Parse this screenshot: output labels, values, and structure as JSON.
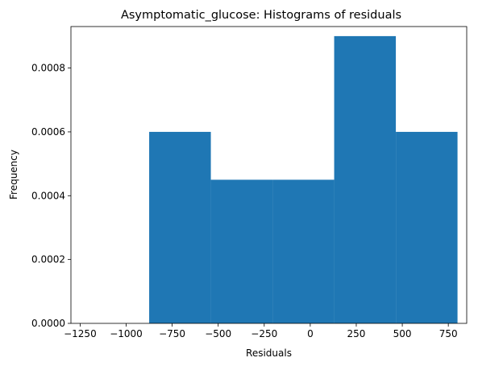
{
  "chart_data": {
    "type": "bar",
    "title": "Asymptomatic_glucose: Histograms of residuals",
    "xlabel": "Residuals",
    "ylabel": "Frequency",
    "xlim": [
      -1300,
      850
    ],
    "ylim": [
      0,
      0.00093
    ],
    "bar_color": "#1f77b4",
    "x_ticks": [
      -1250,
      -1000,
      -750,
      -500,
      -250,
      0,
      250,
      500,
      750
    ],
    "y_ticks": [
      0.0,
      0.0002,
      0.0004,
      0.0006,
      0.0008
    ],
    "x_tick_labels": [
      "−1250",
      "−1000",
      "−750",
      "−500",
      "−250",
      "0",
      "250",
      "500",
      "750"
    ],
    "y_tick_labels": [
      "0.0000",
      "0.0002",
      "0.0004",
      "0.0006",
      "0.0008"
    ],
    "bins": [
      {
        "x0": -1210,
        "x1": -875,
        "value": 0.0
      },
      {
        "x0": -875,
        "x1": -540,
        "value": 0.0006
      },
      {
        "x0": -540,
        "x1": -205,
        "value": 0.00045
      },
      {
        "x0": -205,
        "x1": 130,
        "value": 0.00045
      },
      {
        "x0": 130,
        "x1": 465,
        "value": 0.0009
      },
      {
        "x0": 465,
        "x1": 800,
        "value": 0.0006
      }
    ],
    "grid": false,
    "legend": "none"
  }
}
